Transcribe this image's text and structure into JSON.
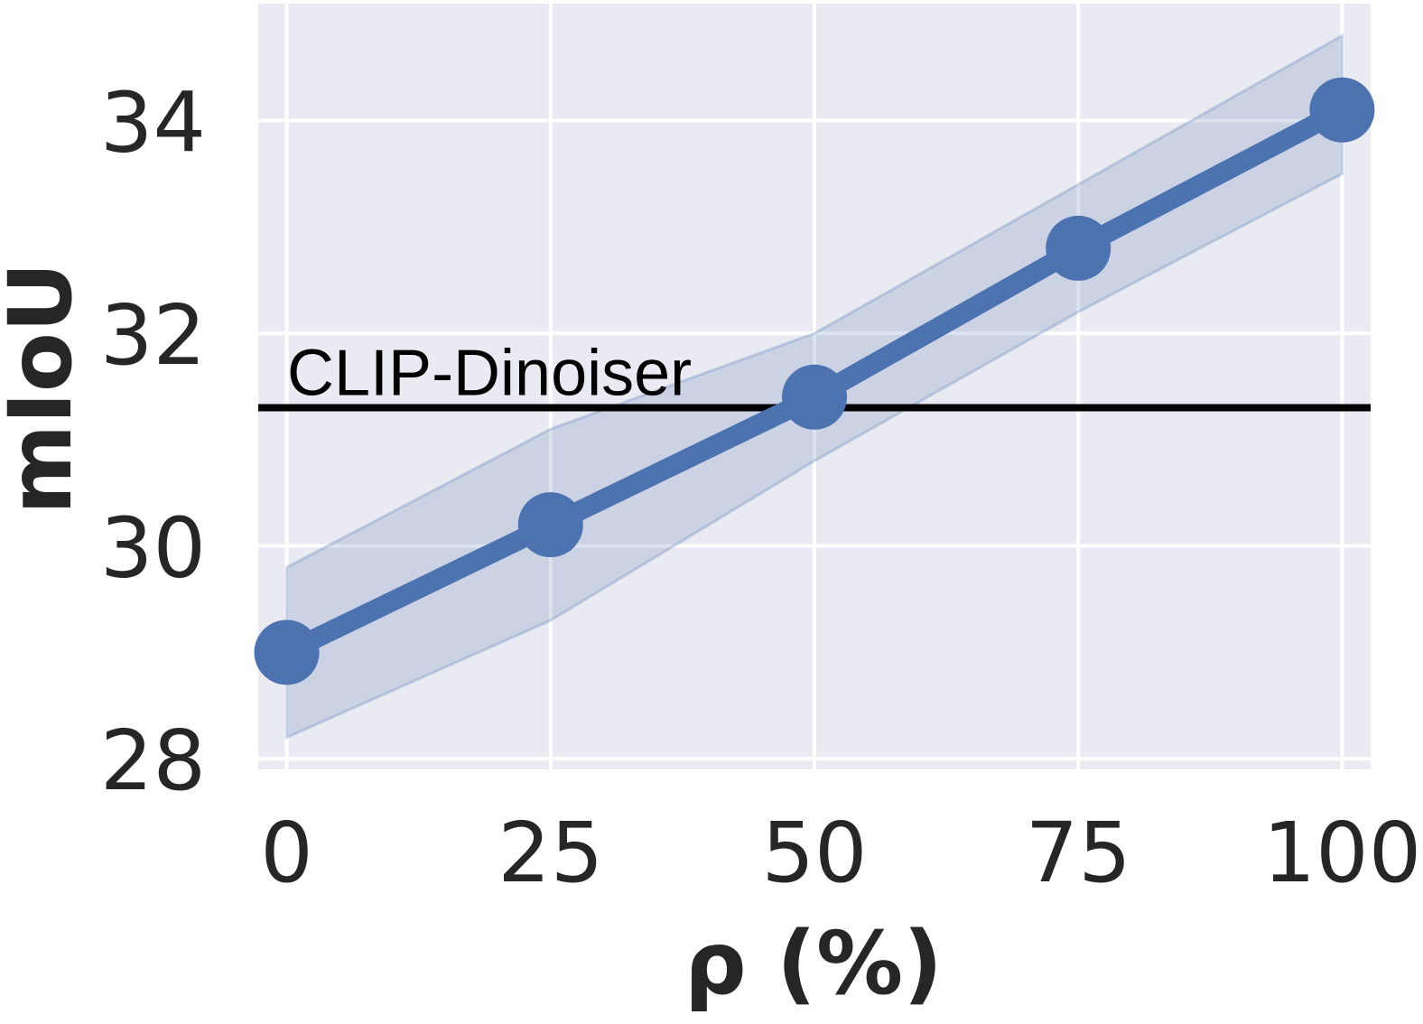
{
  "chart_data": {
    "type": "line",
    "title": "",
    "xlabel": "ρ (%)",
    "ylabel": "mIoU",
    "x": [
      0,
      25,
      50,
      75,
      100
    ],
    "xticks": [
      "0",
      "25",
      "50",
      "75",
      "100"
    ],
    "yticks": [
      "28",
      "30",
      "32",
      "34"
    ],
    "xlim": [
      -2.7,
      102.7
    ],
    "ylim": [
      27.9,
      35.1
    ],
    "grid": true,
    "series": [
      {
        "values": [
          29.0,
          30.2,
          31.4,
          32.8,
          34.1
        ],
        "lower": [
          28.2,
          29.3,
          30.8,
          32.2,
          33.5
        ],
        "upper": [
          29.8,
          31.1,
          32.0,
          33.4,
          34.8
        ],
        "color": "#4c72b0"
      }
    ],
    "reference_lines": [
      {
        "label": "CLIP-Dinoiser",
        "y": 31.3,
        "color": "#000000"
      }
    ],
    "colors": {
      "plot_background": "#eaeaf2",
      "grid": "#ffffff",
      "text": "#262626"
    }
  }
}
